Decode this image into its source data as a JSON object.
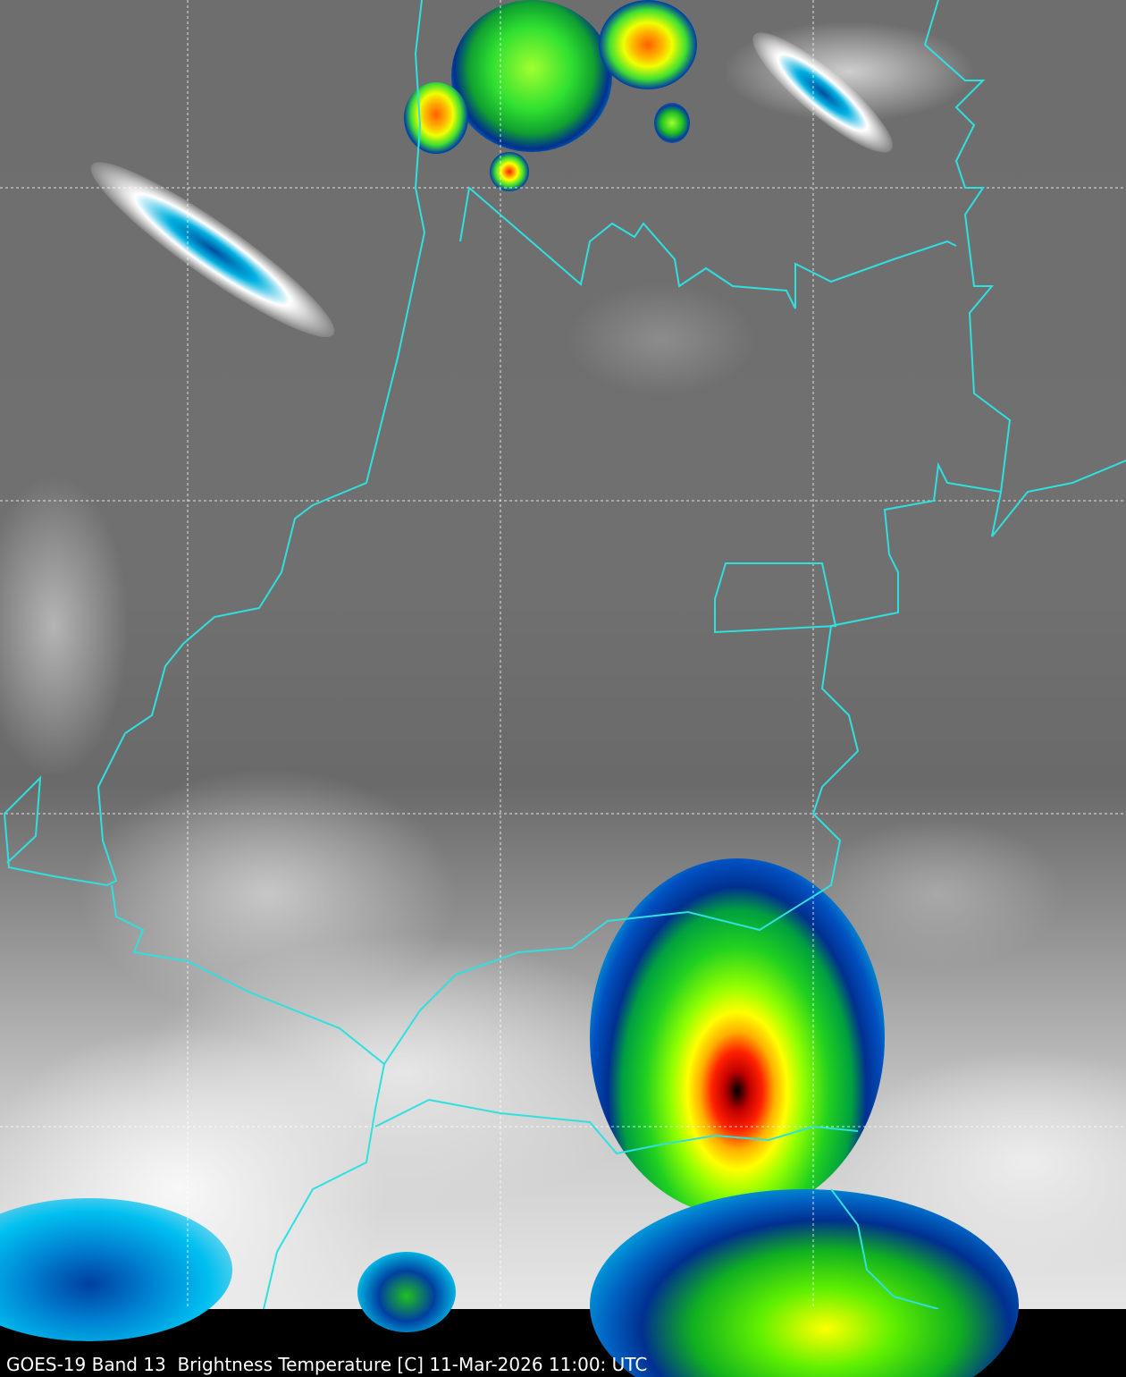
{
  "caption": "GOES-19 Band 13  Brightness Temperature [C] 11-Mar-2026 11:00: UTC",
  "colors": {
    "border": "#2fe0e0",
    "grid": "#ffffff",
    "background": "#000000"
  },
  "color_scale": [
    "#ffffff",
    "#00c8ff",
    "#0000a0",
    "#00ff00",
    "#ffff00",
    "#ff0000",
    "#000000"
  ]
}
